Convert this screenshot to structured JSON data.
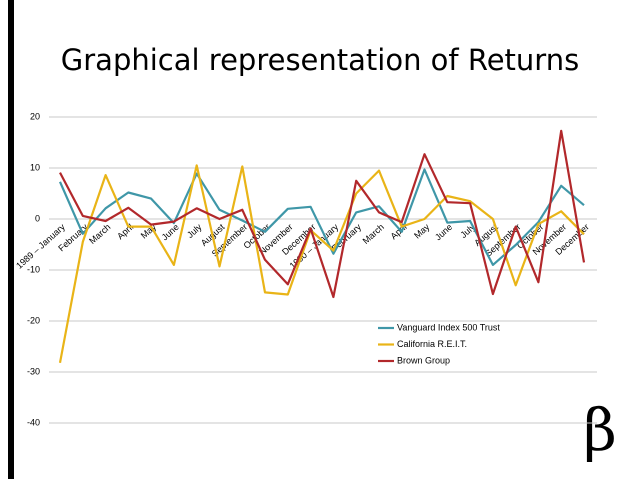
{
  "chart_data": {
    "type": "line",
    "title": "Graphical representation of Returns",
    "logo": "β",
    "categories": [
      "1989 – January",
      "February",
      "March",
      "April",
      "May",
      "June",
      "July",
      "August",
      "September",
      "October",
      "November",
      "December",
      "1990 – January",
      "February",
      "March",
      "April",
      "May",
      "June",
      "July",
      "August",
      "September",
      "October",
      "November",
      "December"
    ],
    "series": [
      {
        "name": "Vanguard Index 500 Trust",
        "color": "#3f97a8",
        "values": [
          7.3,
          -2.9,
          2.1,
          5.2,
          4.0,
          -0.8,
          8.9,
          1.8,
          -0.3,
          -2.5,
          2.0,
          2.4,
          -6.8,
          1.3,
          2.5,
          -2.5,
          9.7,
          -0.7,
          -0.4,
          -9.0,
          -5.1,
          -0.6,
          6.5,
          2.7
        ]
      },
      {
        "name": "California R.E.I.T.",
        "color": "#e9b417",
        "values": [
          -28.2,
          -4.5,
          8.6,
          -1.5,
          -1.5,
          -9.0,
          10.5,
          -9.3,
          10.3,
          -14.4,
          -14.8,
          -2.2,
          -6.2,
          5.0,
          9.5,
          -1.5,
          0.0,
          4.5,
          3.5,
          0.0,
          -13.0,
          -1.0,
          1.5,
          -3.0
        ]
      },
      {
        "name": "Brown Group",
        "color": "#b2282b",
        "values": [
          9.1,
          0.6,
          -0.4,
          2.2,
          -1.1,
          -0.5,
          2.1,
          0.0,
          1.8,
          -8.0,
          -12.8,
          -1.9,
          -15.3,
          7.5,
          1.3,
          -0.6,
          12.7,
          3.3,
          3.1,
          -14.7,
          -1.5,
          -12.4,
          17.3,
          -8.5
        ]
      }
    ],
    "ylim": [
      -40,
      20
    ],
    "yticks": [
      -40,
      -30,
      -20,
      -10,
      0,
      10,
      20
    ],
    "grid": true,
    "legend": "lower-right"
  }
}
